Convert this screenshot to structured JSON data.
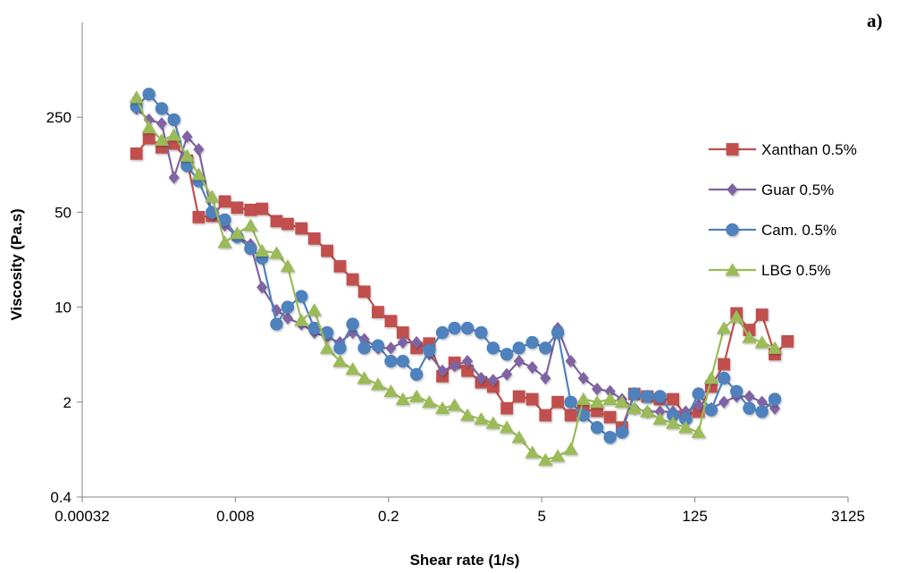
{
  "chart_data": {
    "type": "line",
    "panel_label": "a)",
    "xlabel": "Shear rate (1/s)",
    "ylabel": "Viscosity (Pa.s)",
    "x_scale": "log",
    "y_scale": "log",
    "xlim": [
      0.00032,
      3125
    ],
    "ylim": [
      0.4,
      1250
    ],
    "x_ticks": [
      {
        "value": 0.00032,
        "label": "0.00032"
      },
      {
        "value": 0.008,
        "label": "0.008"
      },
      {
        "value": 0.2,
        "label": "0.2"
      },
      {
        "value": 5,
        "label": "5"
      },
      {
        "value": 125,
        "label": "125"
      },
      {
        "value": 3125,
        "label": "3125"
      }
    ],
    "y_ticks": [
      {
        "value": 0.4,
        "label": "0.4"
      },
      {
        "value": 2,
        "label": "2"
      },
      {
        "value": 10,
        "label": "10"
      },
      {
        "value": 50,
        "label": "50"
      },
      {
        "value": 250,
        "label": "250"
      }
    ],
    "grid": false,
    "legend_position": "right",
    "series": [
      {
        "name": "Xanthan 0.5%",
        "color": "#C0504D",
        "marker": "square",
        "points": [
          [
            0.001,
            135
          ],
          [
            0.0013,
            175
          ],
          [
            0.0017,
            150
          ],
          [
            0.0022,
            160
          ],
          [
            0.0029,
            120
          ],
          [
            0.0037,
            46
          ],
          [
            0.0049,
            47
          ],
          [
            0.0064,
            60
          ],
          [
            0.0083,
            54
          ],
          [
            0.011,
            52
          ],
          [
            0.014,
            53
          ],
          [
            0.019,
            43
          ],
          [
            0.024,
            41
          ],
          [
            0.032,
            38
          ],
          [
            0.042,
            32
          ],
          [
            0.055,
            26
          ],
          [
            0.072,
            20
          ],
          [
            0.094,
            16
          ],
          [
            0.12,
            13
          ],
          [
            0.16,
            9.2
          ],
          [
            0.21,
            7.9
          ],
          [
            0.27,
            6.5
          ],
          [
            0.36,
            5.0
          ],
          [
            0.47,
            5.4
          ],
          [
            0.62,
            3.1
          ],
          [
            0.8,
            3.9
          ],
          [
            1.05,
            3.4
          ],
          [
            1.4,
            2.8
          ],
          [
            1.8,
            2.6
          ],
          [
            2.4,
            1.8
          ],
          [
            3.1,
            2.2
          ],
          [
            4.1,
            2.1
          ],
          [
            5.4,
            1.6
          ],
          [
            7.0,
            2.0
          ],
          [
            9.2,
            1.6
          ],
          [
            12,
            1.75
          ],
          [
            16,
            1.72
          ],
          [
            21,
            1.55
          ],
          [
            27,
            1.3
          ],
          [
            35,
            2.3
          ],
          [
            46,
            2.2
          ],
          [
            60,
            2.1
          ],
          [
            79,
            2.1
          ],
          [
            103,
            1.6
          ],
          [
            135,
            1.7
          ],
          [
            176,
            2.6
          ],
          [
            230,
            3.8
          ],
          [
            300,
            9.0
          ],
          [
            392,
            6.8
          ],
          [
            512,
            8.8
          ],
          [
            670,
            4.5
          ],
          [
            875,
            5.6
          ]
        ]
      },
      {
        "name": "Guar 0.5%",
        "color": "#8064A2",
        "marker": "diamond",
        "points": [
          [
            0.001,
            290
          ],
          [
            0.0013,
            240
          ],
          [
            0.0017,
            225
          ],
          [
            0.0022,
            90
          ],
          [
            0.0029,
            180
          ],
          [
            0.0037,
            145
          ],
          [
            0.0049,
            48
          ],
          [
            0.0064,
            40
          ],
          [
            0.0083,
            33
          ],
          [
            0.011,
            29
          ],
          [
            0.014,
            14
          ],
          [
            0.019,
            9.5
          ],
          [
            0.024,
            8.3
          ],
          [
            0.032,
            7.5
          ],
          [
            0.042,
            6.5
          ],
          [
            0.055,
            6.0
          ],
          [
            0.072,
            5.5
          ],
          [
            0.094,
            6.5
          ],
          [
            0.12,
            5.8
          ],
          [
            0.16,
            5.0
          ],
          [
            0.21,
            5.0
          ],
          [
            0.27,
            5.5
          ],
          [
            0.36,
            5.5
          ],
          [
            0.47,
            4.5
          ],
          [
            0.62,
            3.4
          ],
          [
            0.8,
            3.7
          ],
          [
            1.05,
            4.0
          ],
          [
            1.4,
            3.0
          ],
          [
            1.8,
            2.9
          ],
          [
            2.4,
            3.2
          ],
          [
            3.1,
            4.0
          ],
          [
            4.1,
            3.6
          ],
          [
            5.4,
            3.0
          ],
          [
            7.0,
            7.0
          ],
          [
            9.2,
            4.0
          ],
          [
            12,
            3.0
          ],
          [
            16,
            2.5
          ],
          [
            21,
            2.4
          ],
          [
            27,
            2.1
          ],
          [
            35,
            1.8
          ],
          [
            46,
            1.7
          ],
          [
            60,
            1.7
          ],
          [
            79,
            1.7
          ],
          [
            103,
            1.7
          ],
          [
            135,
            1.9
          ],
          [
            176,
            1.8
          ],
          [
            230,
            2.0
          ],
          [
            300,
            2.2
          ],
          [
            392,
            2.2
          ],
          [
            512,
            2.0
          ],
          [
            670,
            1.8
          ]
        ]
      },
      {
        "name": "Cam. 0.5%",
        "color": "#4F81BD",
        "marker": "circle",
        "points": [
          [
            0.001,
            300
          ],
          [
            0.0013,
            370
          ],
          [
            0.0017,
            290
          ],
          [
            0.0022,
            240
          ],
          [
            0.0029,
            110
          ],
          [
            0.0037,
            85
          ],
          [
            0.0049,
            50
          ],
          [
            0.0064,
            44
          ],
          [
            0.0083,
            33
          ],
          [
            0.011,
            27
          ],
          [
            0.014,
            23
          ],
          [
            0.019,
            7.5
          ],
          [
            0.024,
            10
          ],
          [
            0.032,
            12
          ],
          [
            0.042,
            7.0
          ],
          [
            0.055,
            6.5
          ],
          [
            0.072,
            5.0
          ],
          [
            0.094,
            7.5
          ],
          [
            0.12,
            5.0
          ],
          [
            0.16,
            5.2
          ],
          [
            0.21,
            4.0
          ],
          [
            0.27,
            4.0
          ],
          [
            0.36,
            3.2
          ],
          [
            0.47,
            4.8
          ],
          [
            0.62,
            6.5
          ],
          [
            0.8,
            7.0
          ],
          [
            1.05,
            7.0
          ],
          [
            1.4,
            6.5
          ],
          [
            1.8,
            5.0
          ],
          [
            2.4,
            4.5
          ],
          [
            3.1,
            5.0
          ],
          [
            4.1,
            5.5
          ],
          [
            5.4,
            5.0
          ],
          [
            7.0,
            6.5
          ],
          [
            9.2,
            2.0
          ],
          [
            12,
            1.6
          ],
          [
            16,
            1.3
          ],
          [
            21,
            1.1
          ],
          [
            27,
            1.2
          ],
          [
            35,
            2.3
          ],
          [
            46,
            2.2
          ],
          [
            60,
            2.2
          ],
          [
            79,
            1.6
          ],
          [
            103,
            1.5
          ],
          [
            135,
            2.3
          ],
          [
            176,
            1.75
          ],
          [
            230,
            3.0
          ],
          [
            300,
            2.4
          ],
          [
            392,
            1.8
          ],
          [
            512,
            1.7
          ],
          [
            670,
            2.1
          ]
        ]
      },
      {
        "name": "LBG 0.5%",
        "color": "#9BBB59",
        "marker": "triangle",
        "points": [
          [
            0.001,
            350
          ],
          [
            0.0013,
            210
          ],
          [
            0.0017,
            170
          ],
          [
            0.0022,
            185
          ],
          [
            0.0029,
            130
          ],
          [
            0.0037,
            95
          ],
          [
            0.0049,
            65
          ],
          [
            0.0064,
            30
          ],
          [
            0.0083,
            35
          ],
          [
            0.011,
            40
          ],
          [
            0.014,
            26
          ],
          [
            0.019,
            25
          ],
          [
            0.024,
            20
          ],
          [
            0.032,
            8.0
          ],
          [
            0.042,
            9.5
          ],
          [
            0.055,
            5.0
          ],
          [
            0.072,
            4.0
          ],
          [
            0.094,
            3.5
          ],
          [
            0.12,
            3.0
          ],
          [
            0.16,
            2.7
          ],
          [
            0.21,
            2.4
          ],
          [
            0.27,
            2.1
          ],
          [
            0.36,
            2.2
          ],
          [
            0.47,
            2.0
          ],
          [
            0.62,
            1.8
          ],
          [
            0.8,
            1.9
          ],
          [
            1.05,
            1.6
          ],
          [
            1.4,
            1.5
          ],
          [
            1.8,
            1.4
          ],
          [
            2.4,
            1.3
          ],
          [
            3.1,
            1.1
          ],
          [
            4.1,
            0.85
          ],
          [
            5.4,
            0.75
          ],
          [
            7.0,
            0.8
          ],
          [
            9.2,
            0.9
          ],
          [
            12,
            2.1
          ],
          [
            16,
            2.0
          ],
          [
            21,
            2.1
          ],
          [
            27,
            2.0
          ],
          [
            35,
            1.8
          ],
          [
            46,
            1.7
          ],
          [
            60,
            1.5
          ],
          [
            79,
            1.4
          ],
          [
            103,
            1.3
          ],
          [
            135,
            1.2
          ],
          [
            176,
            3.0
          ],
          [
            230,
            7.0
          ],
          [
            300,
            8.5
          ],
          [
            392,
            6.0
          ],
          [
            512,
            5.5
          ],
          [
            670,
            5.0
          ]
        ]
      }
    ]
  }
}
